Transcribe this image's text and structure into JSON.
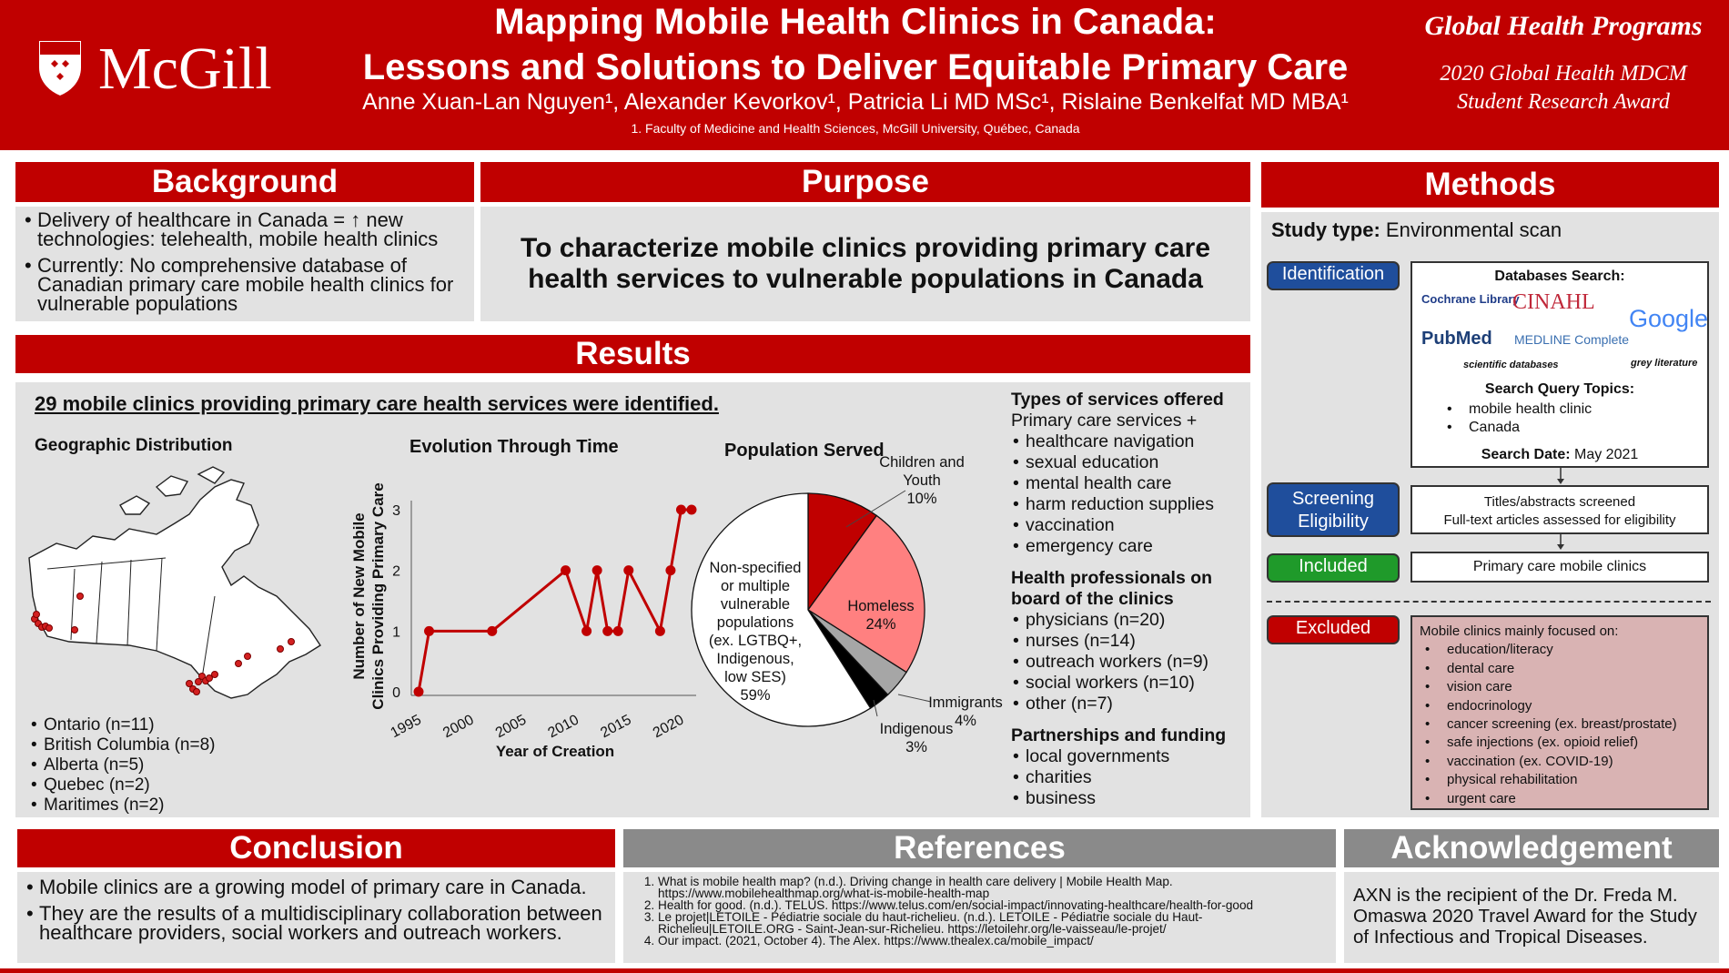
{
  "header": {
    "logo": "McGill",
    "title_line1": "Mapping Mobile Health Clinics in Canada:",
    "title_line2": "Lessons and Solutions to Deliver Equitable Primary Care",
    "authors": "Anne Xuan-Lan Nguyen¹, Alexander Kevorkov¹, Patricia Li MD MSc¹, Rislaine Benkelfat MD MBA¹",
    "affiliation": "1. Faculty of Medicine and Health Sciences, McGill University, Québec, Canada",
    "program": "Global Health Programs",
    "award_line1": "2020 Global Health MDCM",
    "award_line2": "Student Research Award"
  },
  "background": {
    "title": "Background",
    "bullets": [
      "Delivery of healthcare in Canada = ↑ new technologies: telehealth, mobile health clinics",
      "Currently: No comprehensive database of Canadian primary care mobile health clinics for vulnerable populations"
    ]
  },
  "purpose": {
    "title": "Purpose",
    "text": "To characterize mobile clinics providing primary care health services to vulnerable populations in Canada"
  },
  "results": {
    "title": "Results",
    "headline": "29 mobile clinics providing primary care health services were identified.",
    "geo_title": "Geographic Distribution",
    "geo_list": [
      "Ontario (n=11)",
      "British Columbia (n=8)",
      "Alberta (n=5)",
      "Quebec (n=2)",
      "Maritimes (n=2)"
    ],
    "evo_title": "Evolution Through Time",
    "pop_title": "Population Served",
    "services_title": "Types of services offered",
    "services_intro": "Primary care services +",
    "services": [
      "healthcare navigation",
      "sexual education",
      "mental health care",
      "harm reduction supplies",
      "vaccination",
      "emergency care"
    ],
    "hp_title_1": "Health professionals on",
    "hp_title_2": "board of the clinics",
    "hp": [
      "physicians (n=20)",
      "nurses (n=14)",
      "outreach workers (n=9)",
      "social workers (n=10)",
      "other (n=7)"
    ],
    "pf_title": "Partnerships and funding",
    "pf": [
      "local governments",
      "charities",
      "business"
    ]
  },
  "chart_data": [
    {
      "type": "line",
      "title": "Evolution Through Time",
      "xlabel": "Year of Creation",
      "ylabel": "Number of New Mobile Clinics Providing Primary Care",
      "xlim": [
        1995,
        2021
      ],
      "ylim": [
        0,
        3
      ],
      "x_ticks": [
        1995,
        2000,
        2005,
        2010,
        2015,
        2020
      ],
      "y_ticks": [
        0,
        1,
        2,
        3
      ],
      "x": [
        1995,
        1996,
        2002,
        2009,
        2011,
        2012,
        2013,
        2014,
        2015,
        2018,
        2019,
        2020,
        2021
      ],
      "y": [
        0,
        1,
        1,
        2,
        1,
        2,
        1,
        1,
        2,
        1,
        2,
        3,
        3
      ],
      "color": "#c00000"
    },
    {
      "type": "pie",
      "title": "Population Served",
      "slices": [
        {
          "label_lines": [
            "Children and",
            "Youth",
            "10%"
          ],
          "value": 10,
          "color": "#c00000"
        },
        {
          "label_lines": [
            "Homeless",
            "24%"
          ],
          "value": 24,
          "color": "#ff8080"
        },
        {
          "label_lines": [
            "Immigrants",
            "4%"
          ],
          "value": 4,
          "color": "#a6a6a6"
        },
        {
          "label_lines": [
            "Indigenous",
            "3%"
          ],
          "value": 3,
          "color": "#000000"
        },
        {
          "label_lines": [
            "Non-specified",
            "or multiple",
            "vulnerable",
            "populations",
            "(ex. LGTBQ+,",
            "Indigenous,",
            "low SES)",
            "59%"
          ],
          "value": 59,
          "color": "#ffffff"
        }
      ]
    }
  ],
  "methods": {
    "title": "Methods",
    "study_label": "Study type:",
    "study_value": "Environmental scan",
    "pill_identification": "Identification",
    "pill_screening_1": "Screening",
    "pill_screening_2": "Eligibility",
    "pill_included": "Included",
    "pill_excluded": "Excluded",
    "db_title": "Databases Search:",
    "db_logos": [
      "Cochrane Library",
      "CINAHL",
      "Google",
      "PubMed",
      "MEDLINE Complete"
    ],
    "db_caption_left": "scientific databases",
    "db_caption_right": "grey literature",
    "query_title": "Search Query Topics:",
    "query_items": [
      "mobile health clinic",
      "Canada"
    ],
    "search_date_label": "Search Date:",
    "search_date": "May 2021",
    "screen_line1": "Titles/abstracts screened",
    "screen_line2": "Full-text articles assessed for eligibility",
    "included_text": "Primary care mobile clinics",
    "excluded_title": "Mobile clinics mainly focused on:",
    "excluded_items": [
      "education/literacy",
      "dental care",
      "vision care",
      "endocrinology",
      "cancer screening (ex. breast/prostate)",
      "safe injections (ex. opioid relief)",
      "vaccination (ex. COVID-19)",
      "physical rehabilitation",
      "urgent care"
    ],
    "colors": {
      "identification": "#1f4e9c",
      "screening": "#1f4e9c",
      "included": "#1f9a2a",
      "excluded": "#c00000",
      "excluded_box": "#d9b3b3"
    }
  },
  "conclusion": {
    "title": "Conclusion",
    "bullets": [
      "Mobile clinics are a growing model of primary care in Canada.",
      "They are the results of a multidisciplinary collaboration between healthcare providers, social workers and outreach workers."
    ]
  },
  "references": {
    "title": "References",
    "items": [
      "What is mobile health map? (n.d.). Driving change in health care delivery | Mobile Health Map. https://www.mobilehealthmap.org/what-is-mobile-health-map",
      "Health for good. (n.d.). TELUS. https://www.telus.com/en/social-impact/innovating-healthcare/health-for-good",
      "Le projet|LETOILE - Pédiatrie sociale du haut-richelieu. (n.d.). LETOILE - Pédiatrie sociale du Haut-Richelieu|LETOILE.ORG - Saint-Jean-sur-Richelieu. https://letoilehr.org/le-vaisseau/le-projet/",
      "Our impact. (2021, October 4). The Alex. https://www.thealex.ca/mobile_impact/"
    ]
  },
  "acknowledgement": {
    "title": "Acknowledgement",
    "text": "AXN is the recipient of the Dr. Freda M. Omaswa 2020 Travel Award for the Study of Infectious and Tropical Diseases."
  }
}
